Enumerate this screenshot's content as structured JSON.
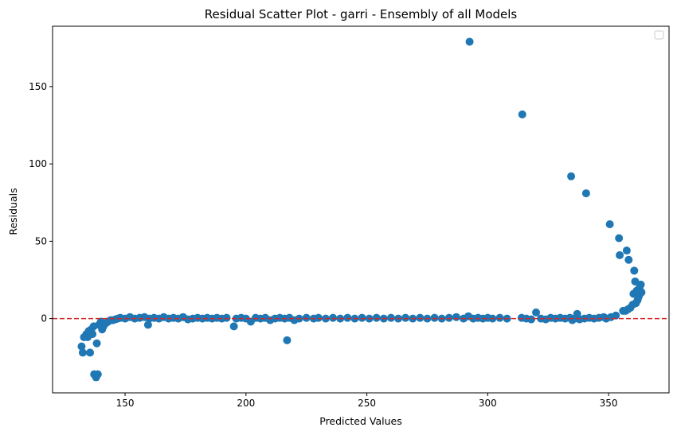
{
  "chart_data": {
    "type": "scatter",
    "title": "Residual Scatter Plot - garri  - Ensembly of all Models",
    "xlabel": "Predicted Values",
    "ylabel": "Residuals",
    "xlim": [
      120,
      375
    ],
    "ylim": [
      -48,
      189
    ],
    "xticks": [
      150,
      200,
      250,
      300,
      350
    ],
    "yticks": [
      0,
      50,
      100,
      150
    ],
    "grid": false,
    "legend": "top-right (empty)",
    "marker_color": "#1f77b4",
    "reference_line": {
      "y": 0,
      "color": "#d62728",
      "style": "dashed"
    },
    "points": [
      [
        132,
        -18
      ],
      [
        132.5,
        -22
      ],
      [
        133,
        -12
      ],
      [
        134,
        -10
      ],
      [
        134.5,
        -12
      ],
      [
        135,
        -8
      ],
      [
        135.5,
        -22
      ],
      [
        136,
        -7
      ],
      [
        136.5,
        -10
      ],
      [
        137,
        -5
      ],
      [
        137.2,
        -36
      ],
      [
        137.8,
        -37
      ],
      [
        138,
        -38
      ],
      [
        138.3,
        -16
      ],
      [
        138.7,
        -36
      ],
      [
        139.2,
        -4
      ],
      [
        140,
        -2
      ],
      [
        140.5,
        -7
      ],
      [
        141,
        -5
      ],
      [
        142,
        -3
      ],
      [
        143,
        -2
      ],
      [
        144,
        -1
      ],
      [
        145,
        -1
      ],
      [
        146,
        -0.5
      ],
      [
        147,
        0
      ],
      [
        148,
        0.5
      ],
      [
        150,
        0
      ],
      [
        152,
        1
      ],
      [
        154,
        0
      ],
      [
        156,
        0.5
      ],
      [
        158,
        1
      ],
      [
        160,
        0
      ],
      [
        159.5,
        -4
      ],
      [
        162,
        0.5
      ],
      [
        164,
        0
      ],
      [
        166,
        1
      ],
      [
        168,
        0
      ],
      [
        170,
        0.5
      ],
      [
        172,
        0
      ],
      [
        174,
        1
      ],
      [
        176,
        -0.5
      ],
      [
        178,
        0
      ],
      [
        180,
        0.5
      ],
      [
        182,
        0
      ],
      [
        184,
        0.5
      ],
      [
        186,
        0
      ],
      [
        188,
        0.5
      ],
      [
        190,
        0
      ],
      [
        192,
        0.5
      ],
      [
        195,
        -5
      ],
      [
        196,
        0
      ],
      [
        198,
        0.5
      ],
      [
        200,
        0
      ],
      [
        202,
        -2
      ],
      [
        204,
        0.5
      ],
      [
        206,
        0
      ],
      [
        208,
        0.5
      ],
      [
        210,
        -1
      ],
      [
        212,
        0
      ],
      [
        214,
        0.5
      ],
      [
        216,
        0
      ],
      [
        217,
        -14
      ],
      [
        218,
        0.5
      ],
      [
        220,
        -1
      ],
      [
        222,
        0
      ],
      [
        225,
        0.5
      ],
      [
        228,
        0
      ],
      [
        230,
        0.5
      ],
      [
        233,
        0
      ],
      [
        236,
        0.5
      ],
      [
        239,
        0
      ],
      [
        242,
        0.5
      ],
      [
        245,
        0
      ],
      [
        248,
        0.5
      ],
      [
        251,
        0
      ],
      [
        254,
        0.5
      ],
      [
        257,
        0
      ],
      [
        260,
        0.5
      ],
      [
        263,
        0
      ],
      [
        266,
        0.5
      ],
      [
        269,
        0
      ],
      [
        272,
        0.5
      ],
      [
        275,
        0
      ],
      [
        278,
        0.5
      ],
      [
        281,
        0
      ],
      [
        284,
        0.5
      ],
      [
        287,
        1
      ],
      [
        290,
        0
      ],
      [
        292,
        1.5
      ],
      [
        292.5,
        179
      ],
      [
        294,
        0
      ],
      [
        296,
        0.5
      ],
      [
        298,
        0
      ],
      [
        300,
        0.5
      ],
      [
        302,
        0
      ],
      [
        305,
        0.5
      ],
      [
        308,
        0
      ],
      [
        314,
        0.5
      ],
      [
        314.3,
        132
      ],
      [
        316,
        0
      ],
      [
        318,
        -0.5
      ],
      [
        320,
        4
      ],
      [
        322,
        0
      ],
      [
        324,
        -0.5
      ],
      [
        326,
        0.5
      ],
      [
        328,
        0
      ],
      [
        330,
        0.5
      ],
      [
        332,
        0
      ],
      [
        334,
        0.5
      ],
      [
        334.5,
        92
      ],
      [
        335,
        -1
      ],
      [
        336,
        0
      ],
      [
        337,
        3
      ],
      [
        338,
        -0.5
      ],
      [
        340,
        0
      ],
      [
        340.7,
        81
      ],
      [
        342,
        0.5
      ],
      [
        344,
        0
      ],
      [
        346,
        0.5
      ],
      [
        348,
        1
      ],
      [
        349,
        0
      ],
      [
        350.5,
        61
      ],
      [
        351,
        1
      ],
      [
        353,
        2
      ],
      [
        354.3,
        52
      ],
      [
        354.6,
        41
      ],
      [
        356,
        5
      ],
      [
        357,
        5
      ],
      [
        357.5,
        44
      ],
      [
        358,
        6
      ],
      [
        358.3,
        38
      ],
      [
        359,
        7
      ],
      [
        360,
        9
      ],
      [
        360.3,
        16
      ],
      [
        360.6,
        31
      ],
      [
        361,
        24
      ],
      [
        361.3,
        10
      ],
      [
        361.6,
        18
      ],
      [
        362,
        12
      ],
      [
        362.4,
        14
      ],
      [
        362.8,
        20
      ],
      [
        363,
        16
      ],
      [
        363.3,
        22
      ],
      [
        363.6,
        17
      ]
    ]
  }
}
